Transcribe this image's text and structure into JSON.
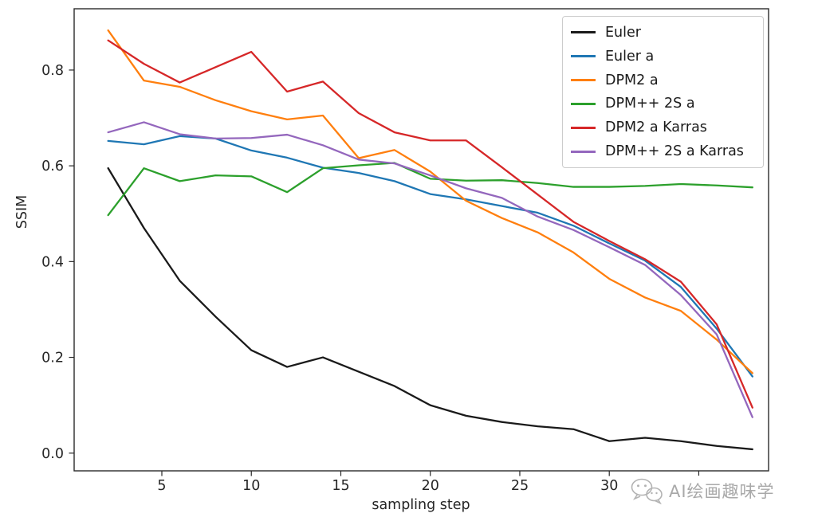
{
  "watermark": {
    "text": "AI绘画趣味学",
    "icon": "wechat-icon",
    "color": "#ababab"
  },
  "chart_data": {
    "type": "line",
    "title": "",
    "xlabel": "sampling step",
    "ylabel": "SSIM",
    "grid": false,
    "legend_position": "upper right",
    "xlim": [
      0.1,
      38.9
    ],
    "ylim": [
      -0.037,
      0.928
    ],
    "xticks": [
      5,
      10,
      15,
      20,
      25,
      30,
      35
    ],
    "xtick_labels": [
      "5",
      "10",
      "15",
      "20",
      "25",
      "30",
      "35"
    ],
    "yticks": [
      0.0,
      0.2,
      0.4,
      0.6,
      0.8
    ],
    "ytick_labels": [
      "0.0",
      "0.2",
      "0.4",
      "0.6",
      "0.8"
    ],
    "x": [
      2,
      4,
      6,
      8,
      10,
      12,
      14,
      16,
      18,
      20,
      22,
      24,
      26,
      28,
      30,
      32,
      34,
      36,
      38
    ],
    "series": [
      {
        "name": "Euler",
        "color": "#1a1a1a",
        "values": [
          0.595,
          0.47,
          0.36,
          0.285,
          0.215,
          0.18,
          0.2,
          0.17,
          0.14,
          0.1,
          0.078,
          0.065,
          0.056,
          0.05,
          0.025,
          0.032,
          0.025,
          0.015,
          0.008
        ]
      },
      {
        "name": "Euler a",
        "color": "#1f77b4",
        "values": [
          0.652,
          0.645,
          0.662,
          0.657,
          0.632,
          0.617,
          0.596,
          0.585,
          0.568,
          0.541,
          0.53,
          0.516,
          0.502,
          0.475,
          0.438,
          0.402,
          0.347,
          0.26,
          0.16
        ]
      },
      {
        "name": "DPM2 a",
        "color": "#ff7f0e",
        "values": [
          0.883,
          0.778,
          0.765,
          0.737,
          0.714,
          0.697,
          0.705,
          0.616,
          0.633,
          0.588,
          0.527,
          0.491,
          0.461,
          0.419,
          0.364,
          0.325,
          0.297,
          0.237,
          0.167
        ]
      },
      {
        "name": "DPM++ 2S a",
        "color": "#2ca02c",
        "values": [
          0.497,
          0.595,
          0.568,
          0.58,
          0.578,
          0.545,
          0.595,
          0.601,
          0.606,
          0.573,
          0.569,
          0.57,
          0.564,
          0.556,
          0.556,
          0.558,
          0.562,
          0.559,
          0.555
        ]
      },
      {
        "name": "DPM2 a Karras",
        "color": "#d62728",
        "values": [
          0.862,
          0.813,
          0.774,
          0.806,
          0.838,
          0.755,
          0.776,
          0.71,
          0.67,
          0.653,
          0.653,
          0.597,
          0.54,
          0.483,
          0.443,
          0.405,
          0.358,
          0.269,
          0.095
        ]
      },
      {
        "name": "DPM++ 2S a Karras",
        "color": "#9467bd",
        "values": [
          0.67,
          0.691,
          0.666,
          0.657,
          0.658,
          0.665,
          0.643,
          0.613,
          0.605,
          0.58,
          0.553,
          0.533,
          0.494,
          0.466,
          0.43,
          0.393,
          0.33,
          0.248,
          0.075
        ]
      }
    ]
  }
}
